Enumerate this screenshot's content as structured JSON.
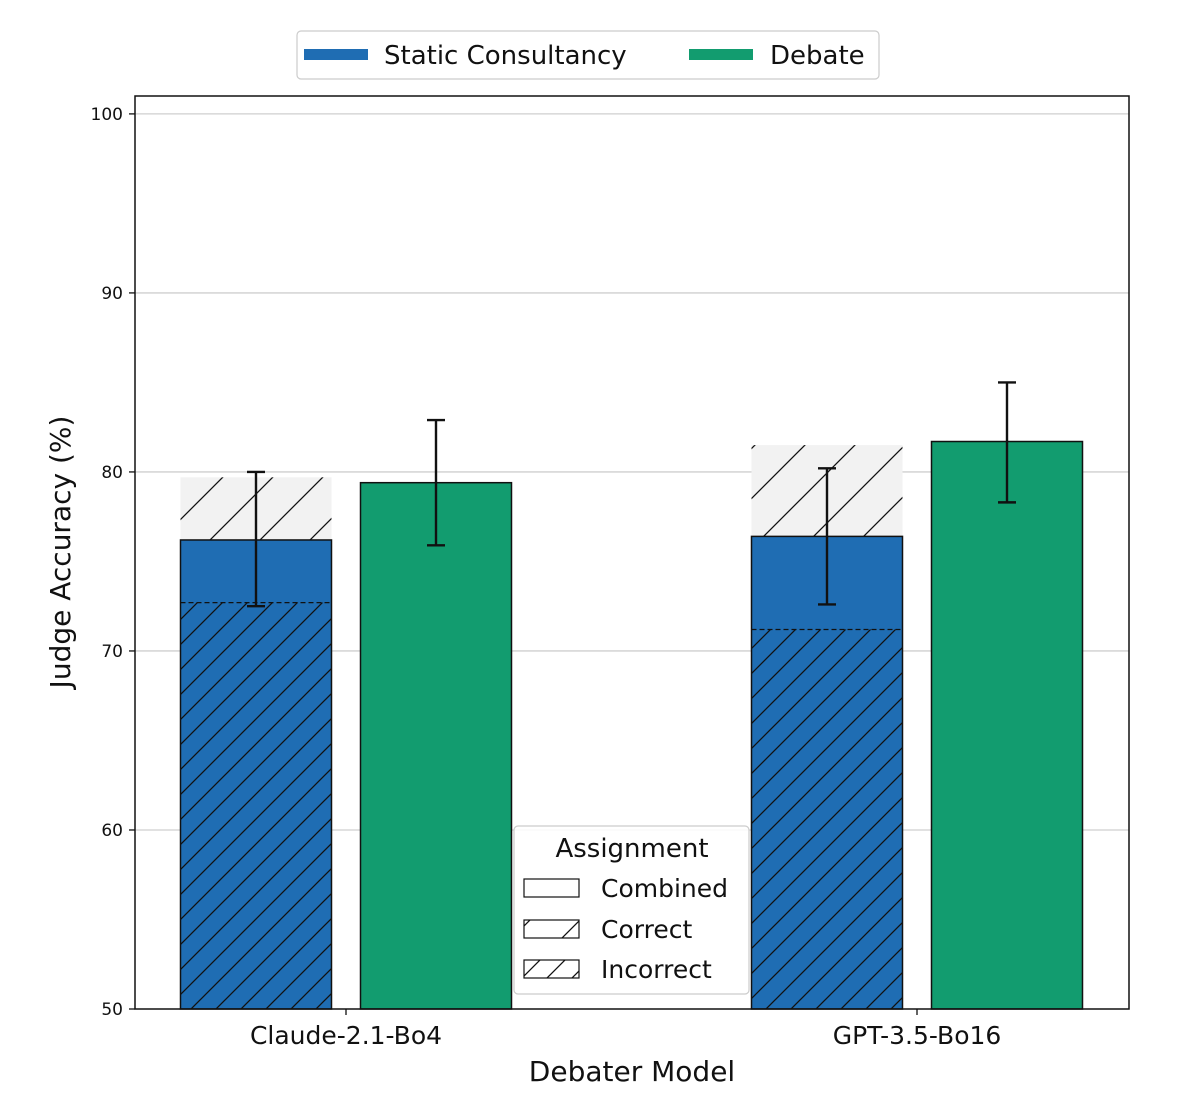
{
  "chart_data": {
    "type": "bar",
    "xlabel": "Debater Model",
    "ylabel": "Judge Accuracy (%)",
    "ylim": [
      50,
      101
    ],
    "yticks": [
      50,
      60,
      70,
      80,
      90,
      100
    ],
    "grid": true,
    "categories": [
      "Claude-2.1-Bo4",
      "GPT-3.5-Bo16"
    ],
    "series": [
      {
        "name": "Static Consultancy",
        "color": "#1f6db3",
        "values": [
          76.2,
          76.4
        ],
        "error": [
          [
            72.5,
            80.0
          ],
          [
            72.6,
            80.2
          ]
        ],
        "correct_values": [
          79.7,
          81.5
        ],
        "incorrect_values": [
          72.7,
          71.2
        ]
      },
      {
        "name": "Debate",
        "color": "#129c6f",
        "values": [
          79.4,
          81.7
        ],
        "error": [
          [
            75.9,
            82.9
          ],
          [
            78.3,
            85.0
          ]
        ]
      }
    ],
    "legend": {
      "position": "top-center",
      "entries": [
        "Static Consultancy",
        "Debate"
      ]
    },
    "assignment_legend": {
      "title": "Assignment",
      "position": "lower-center",
      "entries": [
        "Combined",
        "Correct",
        "Incorrect"
      ]
    },
    "correct_fill": "#f2f2f2"
  }
}
